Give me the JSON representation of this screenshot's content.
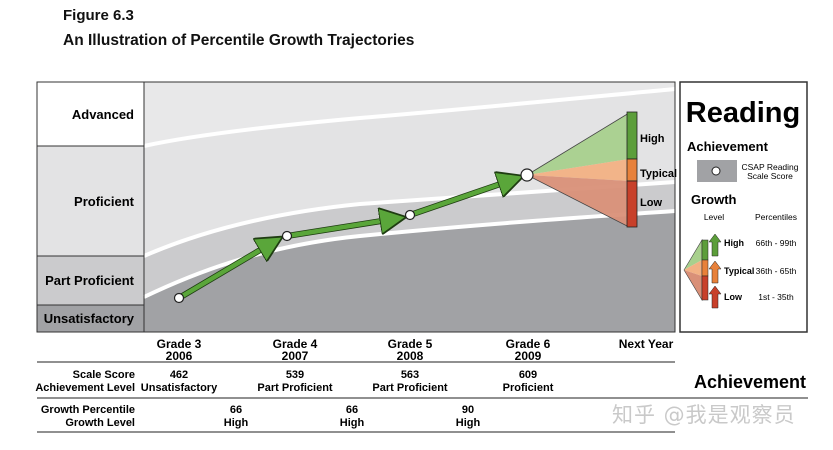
{
  "figure": {
    "label": "Figure 6.3",
    "title": "An Illustration of Percentile Growth Trajectories"
  },
  "levels": [
    "Advanced",
    "Proficient",
    "Part Proficient",
    "Unsatisfactory"
  ],
  "grades": [
    {
      "grade": "Grade 3",
      "year": "2006",
      "scale_score": "462",
      "achievement_level": "Unsatisfactory"
    },
    {
      "grade": "Grade 4",
      "year": "2007",
      "scale_score": "539",
      "achievement_level": "Part Proficient"
    },
    {
      "grade": "Grade 5",
      "year": "2008",
      "scale_score": "563",
      "achievement_level": "Part Proficient"
    },
    {
      "grade": "Grade 6",
      "year": "2009",
      "scale_score": "609",
      "achievement_level": "Proficient"
    }
  ],
  "next_year": "Next Year",
  "projection_labels": {
    "high": "High",
    "typical": "Typical",
    "low": "Low"
  },
  "row_labels": {
    "scale_score": "Scale Score",
    "achievement_level": "Achievement Level",
    "growth_percentile": "Growth Percentile",
    "growth_level": "Growth Level"
  },
  "growth": [
    {
      "percentile": "66",
      "level": "High"
    },
    {
      "percentile": "66",
      "level": "High"
    },
    {
      "percentile": "90",
      "level": "High"
    }
  ],
  "achievement_heading": "Achievement",
  "legend": {
    "title": "Reading",
    "achievement_title": "Achievement",
    "scale_score_line1": "CSAP Reading",
    "scale_score_line2": "Scale Score",
    "growth_title": "Growth",
    "col_level": "Level",
    "col_percentiles": "Percentiles",
    "rows": [
      {
        "level": "High",
        "range": "66th - 99th"
      },
      {
        "level": "Typical",
        "range": "36th - 65th"
      },
      {
        "level": "Low",
        "range": "1st - 35th"
      }
    ]
  },
  "watermark": "知乎 @我是观察员",
  "colors": {
    "band_dark": "#a1a2a5",
    "band_mid": "#cbcbcd",
    "band_light": "#e3e3e4",
    "arrow_green": "#5aa63a",
    "high": "#5c9e3a",
    "typical": "#e8813a",
    "low": "#c8402a"
  }
}
